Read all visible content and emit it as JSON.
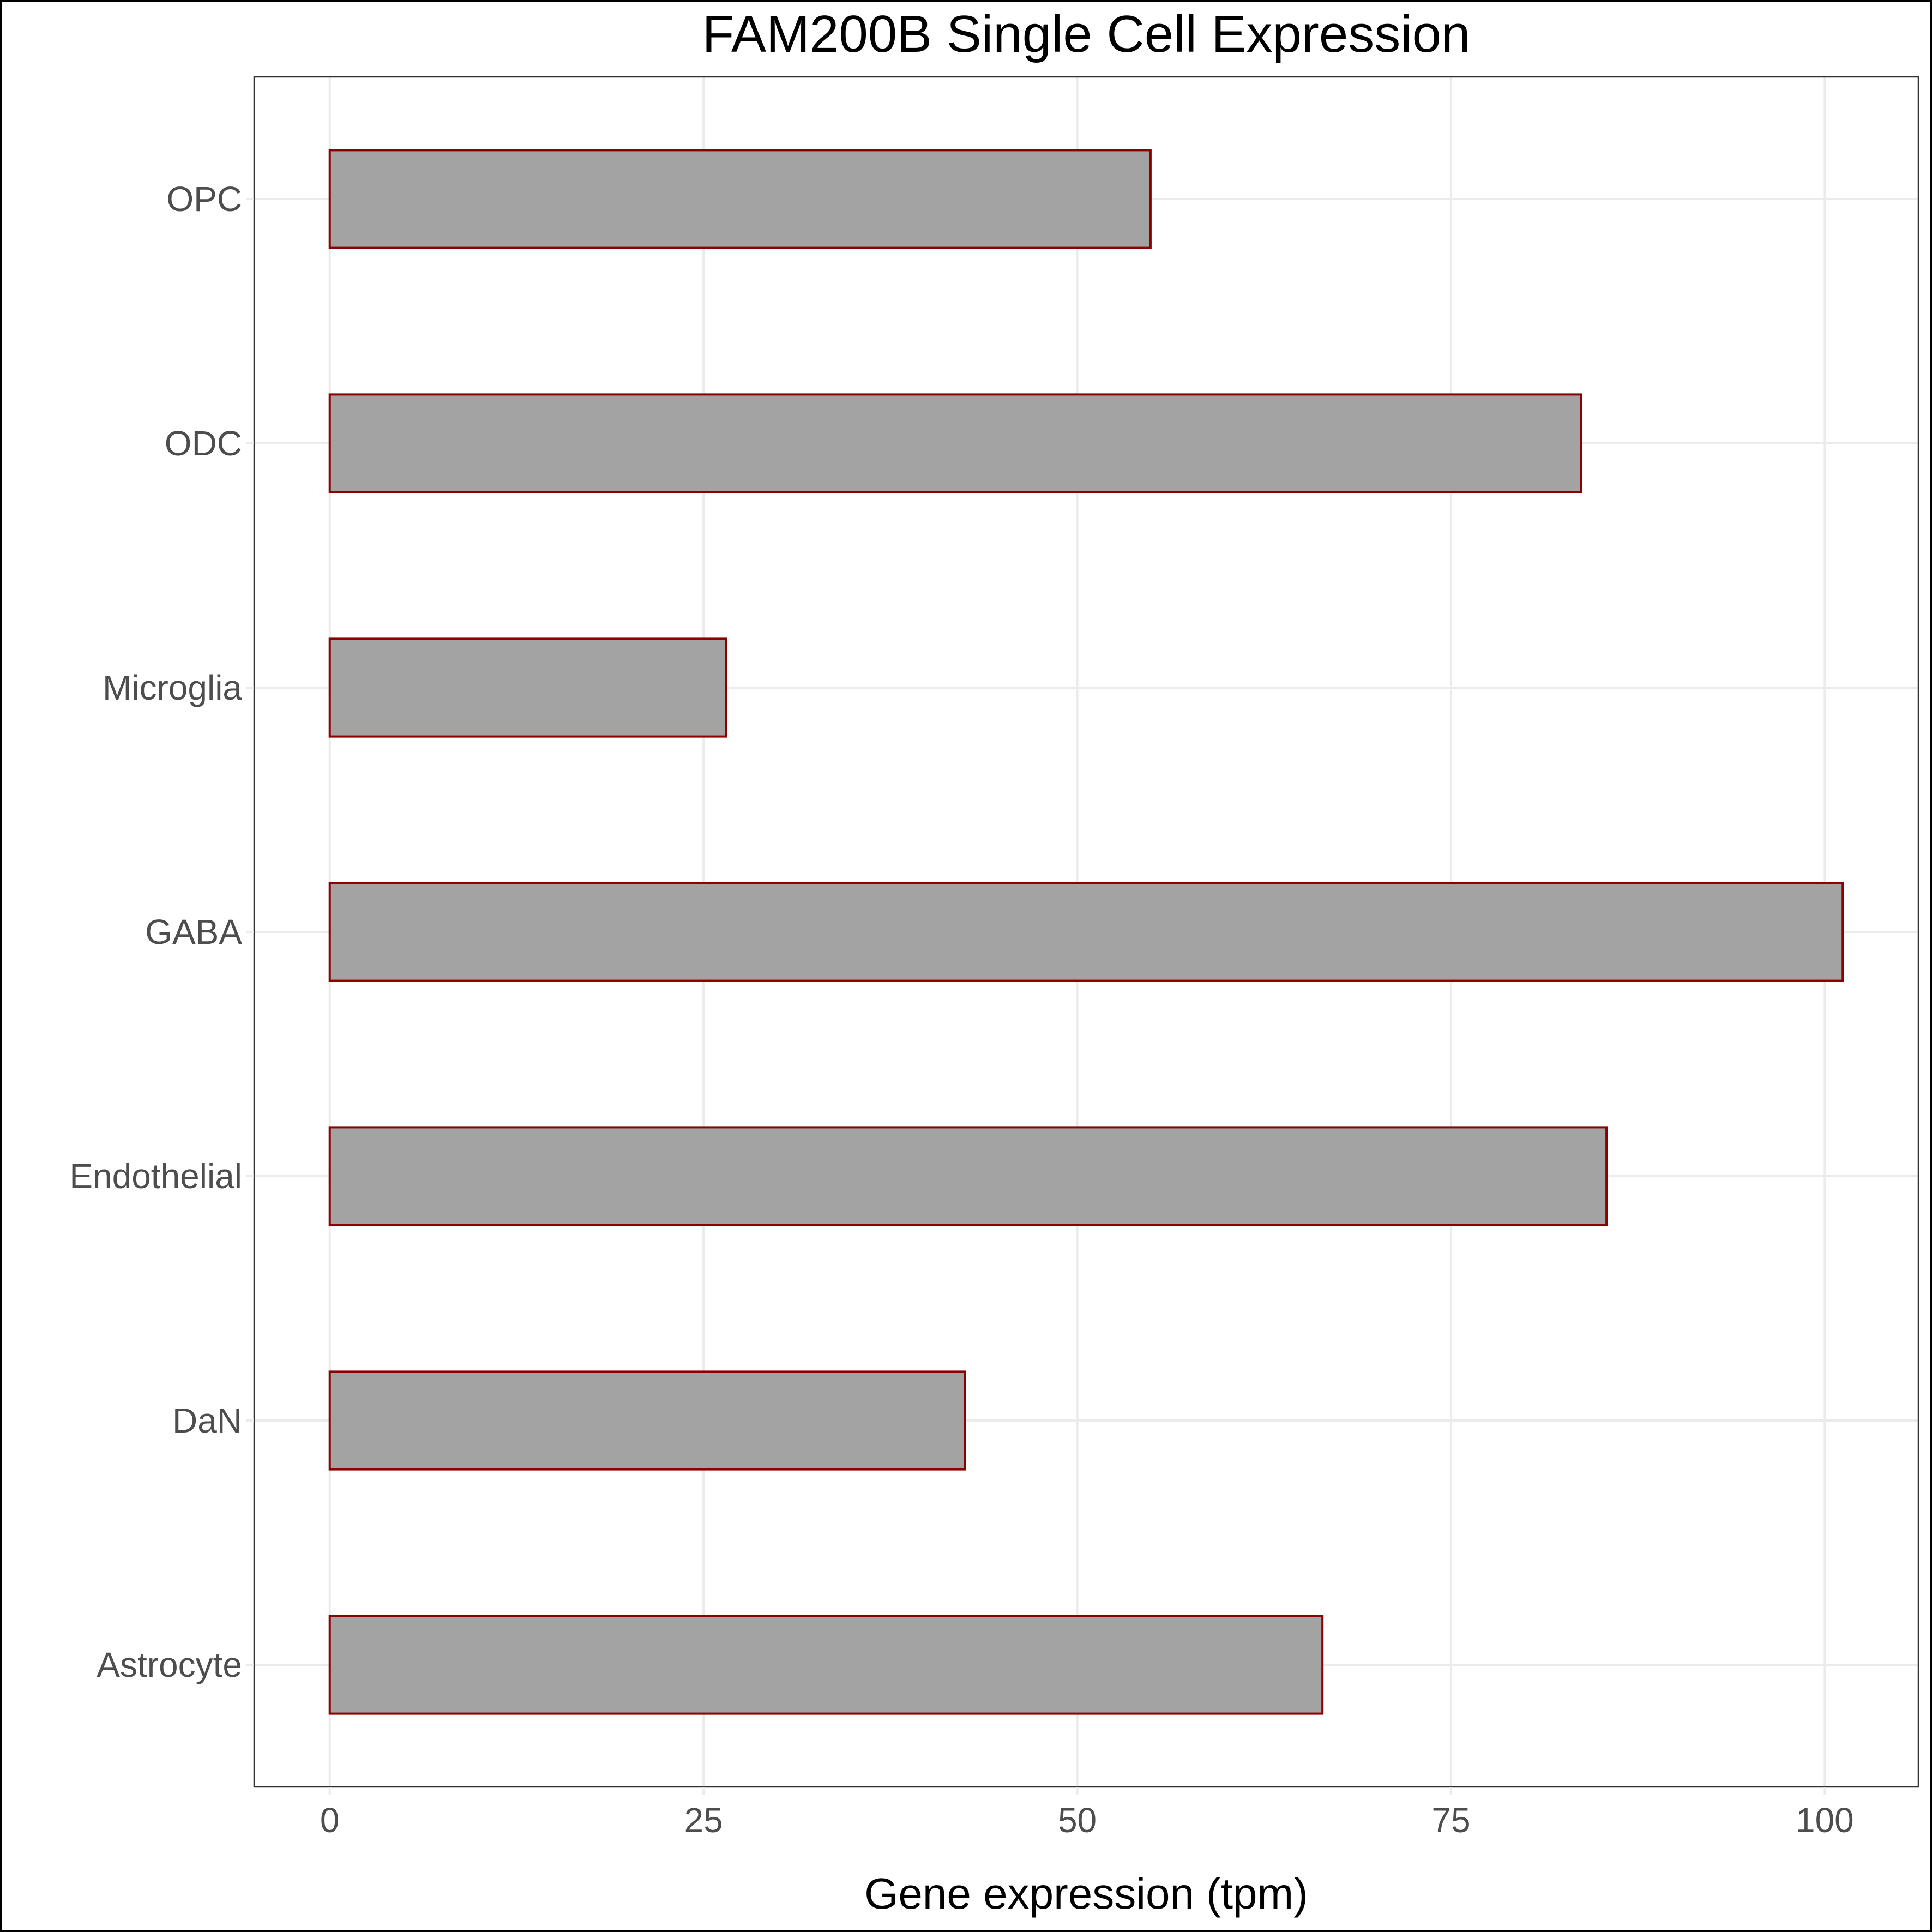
{
  "chart_data": {
    "type": "bar",
    "orientation": "horizontal",
    "title": "FAM200B Single Cell Expression",
    "xlabel": "Gene expression (tpm)",
    "ylabel": "",
    "categories": [
      "Astrocyte",
      "DaN",
      "Endothelial",
      "GABA",
      "Microglia",
      "ODC",
      "OPC"
    ],
    "values": [
      66.4,
      42.5,
      85.4,
      101.2,
      26.5,
      83.7,
      54.9
    ],
    "xlim": [
      -5.06,
      106.26
    ],
    "xticks": [
      0,
      25,
      50,
      75,
      100
    ],
    "xtick_labels": [
      "0",
      "25",
      "50",
      "75",
      "100"
    ],
    "grid": true,
    "legend": "none",
    "colors": {
      "bar_fill": "#a3a3a3",
      "bar_stroke": "#8b0000",
      "grid": "#ebebeb",
      "tick_label": "#4d4d4d"
    }
  }
}
